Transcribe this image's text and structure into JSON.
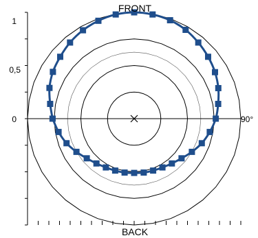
{
  "chart_data": {
    "type": "polar-line",
    "top_label": "FRONT",
    "bottom_label": "BACK",
    "right_label": "90°",
    "y_ticks": [
      "1",
      "0,5",
      "0"
    ],
    "radial_range": [
      -1,
      1
    ],
    "grid": true,
    "series": [
      {
        "color": "#1f4e8c",
        "points": [
          {
            "angle": -90,
            "value": 0.53
          },
          {
            "angle": -80,
            "value": 0.6
          },
          {
            "angle": -70,
            "value": 0.69
          },
          {
            "angle": -60,
            "value": 0.76
          },
          {
            "angle": -50,
            "value": 0.81
          },
          {
            "angle": -40,
            "value": 0.87
          },
          {
            "angle": -30,
            "value": 0.92
          },
          {
            "angle": -20,
            "value": 0.96
          },
          {
            "angle": -10,
            "value": 0.99
          },
          {
            "angle": 0,
            "value": 1.0
          },
          {
            "angle": 10,
            "value": 0.99
          },
          {
            "angle": 20,
            "value": 0.97
          },
          {
            "angle": 30,
            "value": 0.93
          },
          {
            "angle": 40,
            "value": 0.87
          },
          {
            "angle": 50,
            "value": 0.81
          },
          {
            "angle": 60,
            "value": 0.75
          },
          {
            "angle": 70,
            "value": 0.68
          },
          {
            "angle": 80,
            "value": 0.6
          },
          {
            "angle": 90,
            "value": 0.53
          },
          {
            "angle": 100,
            "value": 0.44
          },
          {
            "angle": 110,
            "value": 0.35
          },
          {
            "angle": 120,
            "value": 0.25
          },
          {
            "angle": 130,
            "value": 0.16
          },
          {
            "angle": 140,
            "value": 0.1
          },
          {
            "angle": 150,
            "value": 0.06
          },
          {
            "angle": 160,
            "value": 0.04
          },
          {
            "angle": 170,
            "value": 0.03
          },
          {
            "angle": 180,
            "value": 0.02
          },
          {
            "angle": 190,
            "value": 0.03
          },
          {
            "angle": 200,
            "value": 0.04
          },
          {
            "angle": 210,
            "value": 0.06
          },
          {
            "angle": 220,
            "value": 0.1
          },
          {
            "angle": 230,
            "value": 0.16
          },
          {
            "angle": 240,
            "value": 0.25
          },
          {
            "angle": 250,
            "value": 0.35
          },
          {
            "angle": 260,
            "value": 0.44
          },
          {
            "angle": 270,
            "value": 0.53
          }
        ]
      }
    ]
  }
}
